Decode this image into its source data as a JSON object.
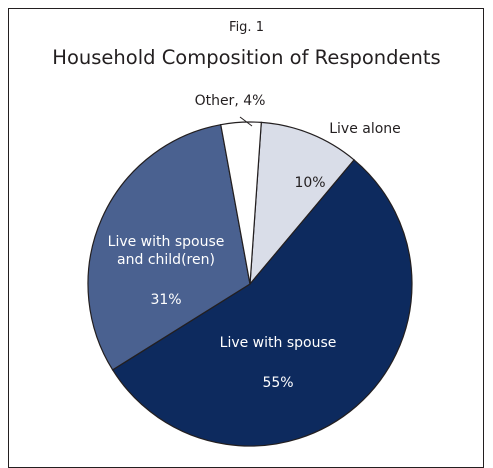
{
  "fig_label": "Fig. 1",
  "chart_data": {
    "type": "pie",
    "title": "Household Composition of Respondents",
    "slices": [
      {
        "label": "Live alone",
        "value": 10,
        "value_label": "10%",
        "color": "#d9dde8"
      },
      {
        "label": "Live with spouse",
        "value": 55,
        "value_label": "55%",
        "color": "#0d2a5e"
      },
      {
        "label": "Live with spouse and child(ren)",
        "label_lines": [
          "Live with spouse",
          "and child(ren)"
        ],
        "value": 31,
        "value_label": "31%",
        "color": "#4a6190"
      },
      {
        "label": "Other, 4%",
        "value": 4,
        "color": "#ffffff"
      }
    ],
    "start_angle_deg": 4,
    "direction": "clockwise",
    "stroke_color": "#231f20"
  }
}
